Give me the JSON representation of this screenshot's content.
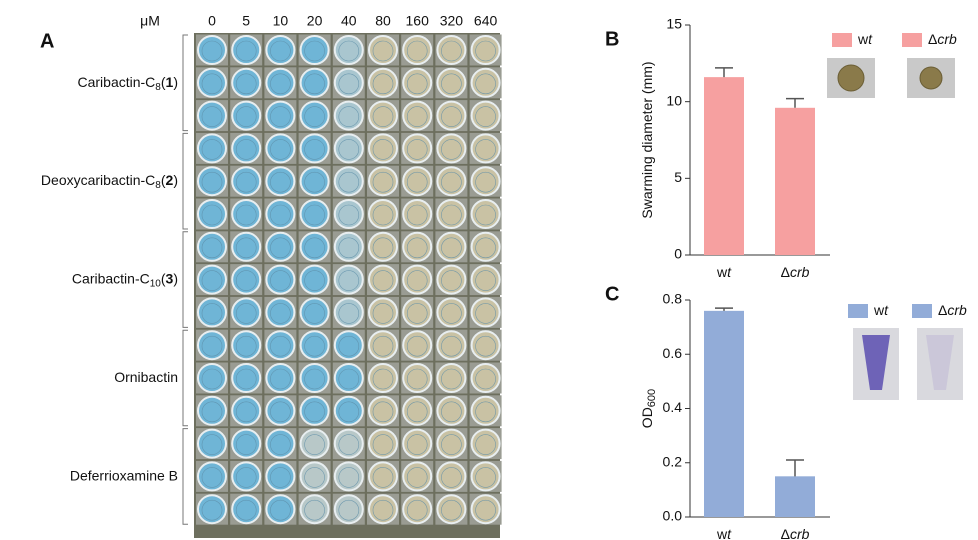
{
  "plate": {
    "panel": "A",
    "unit": "μM",
    "concentrations": [
      0,
      5,
      10,
      20,
      40,
      80,
      160,
      320,
      640
    ],
    "compounds": [
      {
        "name": "Caribactin-C",
        "sub": "8",
        "num": "1"
      },
      {
        "name": "Deoxycaribactin-C",
        "sub": "8",
        "num": "2"
      },
      {
        "name": "Caribactin-C",
        "sub": "10",
        "num": "3"
      },
      {
        "name": "Ornibactin"
      },
      {
        "name": "Deferrioxamine B"
      }
    ]
  },
  "chart_data": [
    {
      "type": "bar",
      "panel": "B",
      "ylabel": "Swarming diameter (mm)",
      "categories": [
        "wt",
        "Δcrb"
      ],
      "values": [
        11.6,
        9.6
      ],
      "errors": [
        0.6,
        0.6
      ],
      "color": "#f6a0a0",
      "ylim": [
        0,
        15
      ],
      "yticks": [
        0,
        5,
        10,
        15
      ]
    },
    {
      "type": "bar",
      "panel": "C",
      "ylabel": "OD",
      "ylabel_sub": "600",
      "categories": [
        "wt",
        "Δcrb"
      ],
      "values": [
        0.76,
        0.15
      ],
      "errors": [
        0.01,
        0.06
      ],
      "color": "#92acd8",
      "ylim": [
        0,
        0.8
      ],
      "yticks": [
        {
          "value": 0,
          "label": "0.0"
        },
        0.2,
        0.4,
        0.6,
        0.8
      ]
    }
  ]
}
